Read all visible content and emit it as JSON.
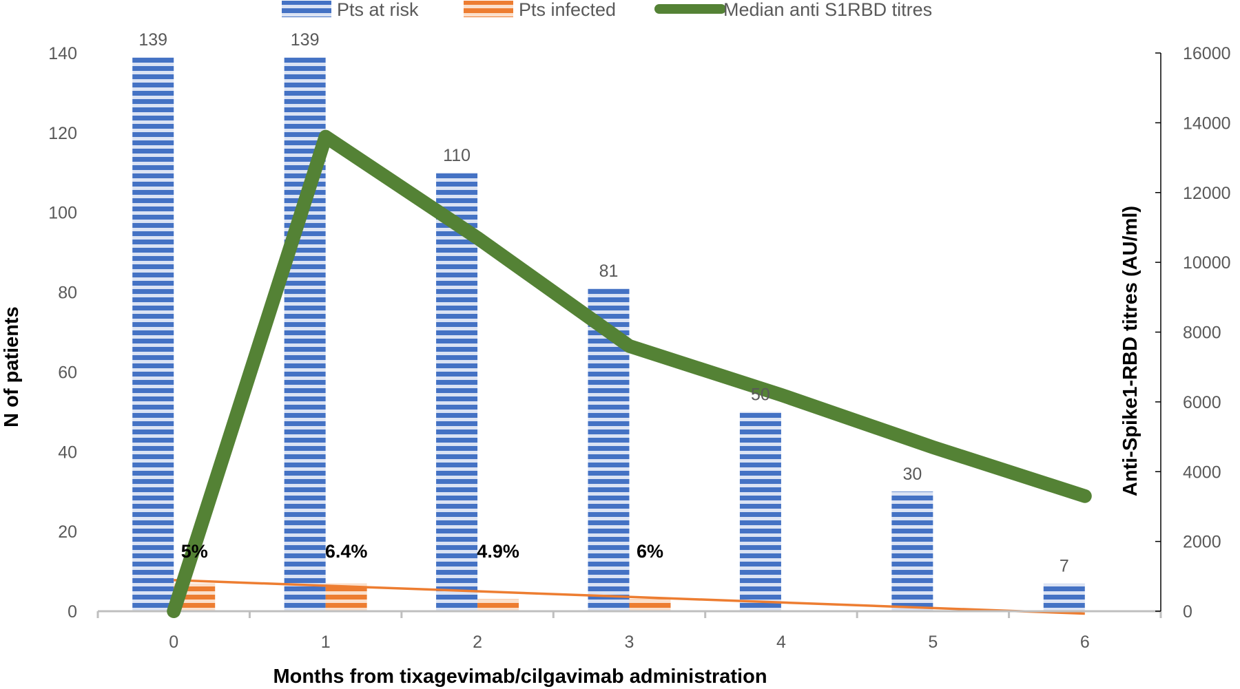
{
  "chart_data": {
    "type": "bar",
    "categories": [
      "0",
      "1",
      "2",
      "3",
      "4",
      "5",
      "6"
    ],
    "series": [
      {
        "name": "Pts at risk",
        "kind": "bar",
        "axis": "left",
        "color": "#4472C4",
        "values": [
          139,
          139,
          110,
          81,
          50,
          30,
          7
        ],
        "labels": [
          "139",
          "139",
          "110",
          "81",
          "50",
          "30",
          "7"
        ]
      },
      {
        "name": "Pts infected",
        "kind": "bar",
        "axis": "left",
        "color": "#ED7D31",
        "values": [
          7,
          7,
          3,
          3,
          0,
          0,
          0
        ],
        "labels": [
          "5%",
          "6.4%",
          "4.9%",
          "6%",
          "",
          "",
          ""
        ]
      },
      {
        "name": "Median anti S1RBD titres",
        "kind": "line",
        "axis": "right",
        "color": "#548235",
        "values": [
          0,
          13600,
          10700,
          7600,
          6200,
          4700,
          3300
        ]
      }
    ],
    "trendline": {
      "of": "Pts infected",
      "color": "#ED7D31",
      "start": 7.8,
      "end": -0.6
    },
    "xlabel": "Months from tixagevimab/cilgavimab administration",
    "ylabel": "N of patients",
    "y2label": "Anti-Spike1-RBD titres (AU/ml)",
    "ylim": [
      0,
      140
    ],
    "yticks": [
      0,
      20,
      40,
      60,
      80,
      100,
      120,
      140
    ],
    "y2lim": [
      0,
      16000
    ],
    "y2ticks": [
      0,
      2000,
      4000,
      6000,
      8000,
      10000,
      12000,
      14000,
      16000
    ],
    "legend_position": "top",
    "grid": false
  }
}
